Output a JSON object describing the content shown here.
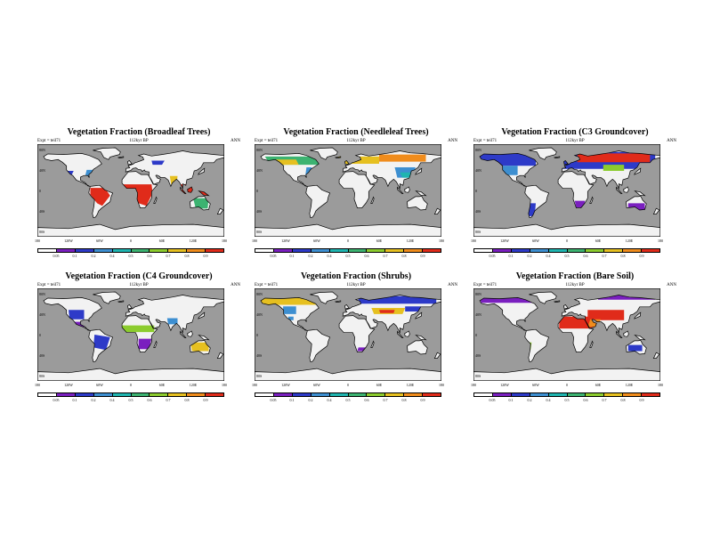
{
  "colors": {
    "ocean": "#9b9b9b",
    "land": "#f2f2f2",
    "coast": "#000000",
    "scale": [
      "#ffffff",
      "#7a1fbf",
      "#2d3ac8",
      "#3d8fd1",
      "#1fb5b0",
      "#3cb371",
      "#8ccc2e",
      "#e6c020",
      "#f08c1c",
      "#e02b1a"
    ]
  },
  "legend_levels": [
    "0.05",
    "0.1",
    "0.2",
    "0.4",
    "0.5",
    "0.6",
    "0.7",
    "0.8",
    "0.9"
  ],
  "x_ticks": [
    "180",
    "120W",
    "60W",
    "0",
    "60E",
    "120E",
    "180"
  ],
  "y_ticks": [
    "80N",
    "40N",
    "0",
    "40S",
    "80S"
  ],
  "panels": [
    {
      "title": "Vegetation Fraction (Broadleaf Trees)",
      "expt": "Expt = teil71",
      "period": "112kyr BP",
      "season": "ANN",
      "patches": [
        {
          "lon": [
            -135,
            -110,
            -115,
            -135
          ],
          "lat": [
            38,
            38,
            28,
            28
          ],
          "c": 2
        },
        {
          "lon": [
            -85,
            -70,
            -72,
            -88
          ],
          "lat": [
            40,
            40,
            28,
            28
          ],
          "c": 3
        },
        {
          "lon": [
            -78,
            -50,
            -40,
            -55,
            -65,
            -78
          ],
          "lat": [
            5,
            5,
            -10,
            -30,
            -25,
            -8
          ],
          "c": 9
        },
        {
          "lon": [
            -15,
            40,
            42,
            30,
            15,
            -10
          ],
          "lat": [
            12,
            12,
            -5,
            -30,
            -25,
            5
          ],
          "c": 9
        },
        {
          "lon": [
            95,
            145,
            150,
            100
          ],
          "lat": [
            12,
            12,
            -10,
            -8
          ],
          "c": 9
        },
        {
          "lon": [
            75,
            90,
            88,
            78
          ],
          "lat": [
            28,
            28,
            10,
            10
          ],
          "c": 7
        },
        {
          "lon": [
            120,
            150,
            148,
            125
          ],
          "lat": [
            -15,
            -15,
            -35,
            -35
          ],
          "c": 5
        },
        {
          "lon": [
            40,
            65,
            60,
            42
          ],
          "lat": [
            58,
            58,
            50,
            50
          ],
          "c": 2
        }
      ]
    },
    {
      "title": "Vegetation Fraction (Needleleaf Trees)",
      "expt": "Expt = teil71",
      "period": "112kyr BP",
      "season": "ANN",
      "patches": [
        {
          "lon": [
            -160,
            -60,
            -55,
            -150
          ],
          "lat": [
            66,
            66,
            50,
            50
          ],
          "c": 5
        },
        {
          "lon": [
            -140,
            -100,
            -95,
            -130
          ],
          "lat": [
            60,
            60,
            50,
            50
          ],
          "c": 7
        },
        {
          "lon": [
            -20,
            60,
            60,
            -10
          ],
          "lat": [
            66,
            66,
            52,
            52
          ],
          "c": 7
        },
        {
          "lon": [
            60,
            150,
            150,
            60
          ],
          "lat": [
            70,
            70,
            56,
            56
          ],
          "c": 8
        },
        {
          "lon": [
            90,
            130,
            125,
            95
          ],
          "lat": [
            45,
            45,
            25,
            25
          ],
          "c": 3
        },
        {
          "lon": [
            100,
            125,
            120,
            105
          ],
          "lat": [
            35,
            35,
            25,
            25
          ],
          "c": 4
        },
        {
          "lon": [
            -80,
            -70,
            -72,
            -82
          ],
          "lat": [
            45,
            45,
            30,
            30
          ],
          "c": 3
        }
      ]
    },
    {
      "title": "Vegetation Fraction (C3 Groundcover)",
      "expt": "Expt = teil71",
      "period": "112kyr BP",
      "season": "ANN",
      "patches": [
        {
          "lon": [
            -170,
            -60,
            -60,
            -165
          ],
          "lat": [
            72,
            72,
            48,
            48
          ],
          "c": 2
        },
        {
          "lon": [
            -125,
            -95,
            -95,
            -125
          ],
          "lat": [
            48,
            48,
            30,
            30
          ],
          "c": 3
        },
        {
          "lon": [
            -10,
            170,
            170,
            -10
          ],
          "lat": [
            75,
            75,
            42,
            42
          ],
          "c": 2
        },
        {
          "lon": [
            20,
            160,
            160,
            20
          ],
          "lat": [
            72,
            72,
            55,
            55
          ],
          "c": 9
        },
        {
          "lon": [
            70,
            110,
            110,
            70
          ],
          "lat": [
            50,
            50,
            38,
            38
          ],
          "c": 6
        },
        {
          "lon": [
            -72,
            -60,
            -62,
            -74
          ],
          "lat": [
            -25,
            -25,
            -50,
            -50
          ],
          "c": 2
        },
        {
          "lon": [
            118,
            150,
            150,
            118
          ],
          "lat": [
            -25,
            -25,
            -40,
            -40
          ],
          "c": 1
        },
        {
          "lon": [
            15,
            35,
            32,
            18
          ],
          "lat": [
            -20,
            -20,
            -33,
            -33
          ],
          "c": 1
        }
      ]
    },
    {
      "title": "Vegetation Fraction (C4 Groundcover)",
      "expt": "Expt = teil71",
      "period": "112kyr BP",
      "season": "ANN",
      "patches": [
        {
          "lon": [
            -120,
            -90,
            -90,
            -118
          ],
          "lat": [
            48,
            48,
            30,
            30
          ],
          "c": 2
        },
        {
          "lon": [
            -70,
            -40,
            -48,
            -72
          ],
          "lat": [
            0,
            -5,
            -30,
            -25
          ],
          "c": 2
        },
        {
          "lon": [
            -20,
            45,
            45,
            -20
          ],
          "lat": [
            18,
            18,
            5,
            5
          ],
          "c": 6
        },
        {
          "lon": [
            15,
            40,
            35,
            15
          ],
          "lat": [
            -8,
            -8,
            -28,
            -28
          ],
          "c": 1
        },
        {
          "lon": [
            115,
            150,
            150,
            118
          ],
          "lat": [
            -15,
            -15,
            -32,
            -32
          ],
          "c": 7
        },
        {
          "lon": [
            70,
            90,
            90,
            72
          ],
          "lat": [
            32,
            32,
            20,
            20
          ],
          "c": 3
        },
        {
          "lon": [
            -110,
            -85,
            -85,
            -110
          ],
          "lat": [
            25,
            25,
            15,
            15
          ],
          "c": 1
        }
      ]
    },
    {
      "title": "Vegetation Fraction (Shrubs)",
      "expt": "Expt = teil71",
      "period": "112kyr BP",
      "season": "ANN",
      "patches": [
        {
          "lon": [
            -170,
            -60,
            -60,
            -165
          ],
          "lat": [
            72,
            72,
            58,
            58
          ],
          "c": 7
        },
        {
          "lon": [
            -125,
            -100,
            -100,
            -125
          ],
          "lat": [
            55,
            55,
            40,
            40
          ],
          "c": 3
        },
        {
          "lon": [
            20,
            170,
            170,
            20
          ],
          "lat": [
            75,
            75,
            60,
            60
          ],
          "c": 2
        },
        {
          "lon": [
            45,
            110,
            105,
            50
          ],
          "lat": [
            52,
            52,
            40,
            40
          ],
          "c": 7
        },
        {
          "lon": [
            60,
            90,
            88,
            62
          ],
          "lat": [
            48,
            48,
            42,
            42
          ],
          "c": 9
        },
        {
          "lon": [
            110,
            140,
            140,
            110
          ],
          "lat": [
            55,
            55,
            45,
            45
          ],
          "c": 2
        },
        {
          "lon": [
            20,
            35,
            30,
            18
          ],
          "lat": [
            -25,
            -25,
            -32,
            -32
          ],
          "c": 1
        },
        {
          "lon": [
            -115,
            -105,
            -105,
            -115
          ],
          "lat": [
            35,
            35,
            28,
            28
          ],
          "c": 3
        }
      ]
    },
    {
      "title": "Vegetation Fraction (Bare Soil)",
      "expt": "Expt = teil71",
      "period": "112kyr BP",
      "season": "ANN",
      "patches": [
        {
          "lon": [
            -170,
            -60,
            -60,
            -165
          ],
          "lat": [
            75,
            75,
            62,
            62
          ],
          "c": 1
        },
        {
          "lon": [
            60,
            170,
            170,
            60
          ],
          "lat": [
            78,
            78,
            68,
            68
          ],
          "c": 1
        },
        {
          "lon": [
            -15,
            60,
            60,
            -15
          ],
          "lat": [
            35,
            35,
            12,
            12
          ],
          "c": 9
        },
        {
          "lon": [
            40,
            110,
            110,
            40
          ],
          "lat": [
            48,
            48,
            28,
            28
          ],
          "c": 9
        },
        {
          "lon": [
            45,
            65,
            60,
            40
          ],
          "lat": [
            30,
            30,
            15,
            15
          ],
          "c": 8
        },
        {
          "lon": [
            118,
            145,
            145,
            118
          ],
          "lat": [
            -20,
            -20,
            -32,
            -32
          ],
          "c": 2
        },
        {
          "lon": [
            -75,
            -68,
            -70,
            -78
          ],
          "lat": [
            -15,
            -15,
            -30,
            -30
          ],
          "c": 6
        }
      ]
    }
  ]
}
